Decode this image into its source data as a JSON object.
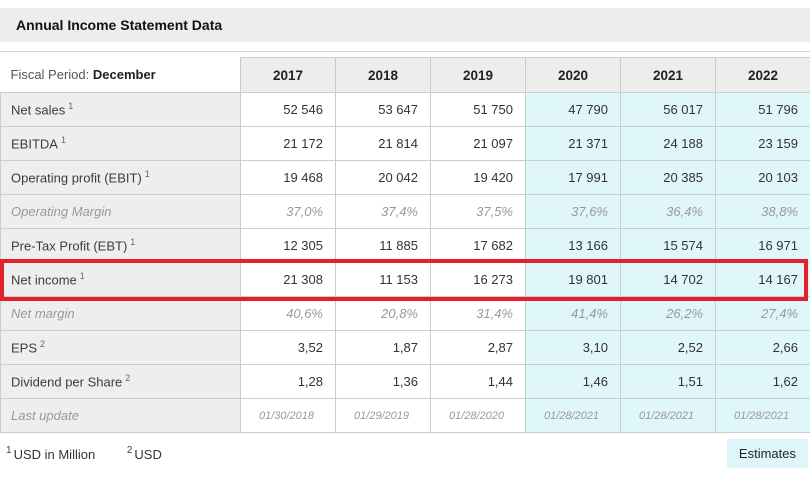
{
  "title": "Annual Income Statement Data",
  "table": {
    "fiscal_period_label": "Fiscal Period:",
    "fiscal_period_value": "December",
    "years": [
      "2017",
      "2018",
      "2019",
      "2020",
      "2021",
      "2022"
    ],
    "estimate_year_start_index": 3,
    "rows": [
      {
        "id": "net-sales",
        "label": "Net sales",
        "sup": "1",
        "variant": "normal",
        "highlighted": false,
        "values": [
          "52 546",
          "53 647",
          "51 750",
          "47 790",
          "56 017",
          "51 796"
        ]
      },
      {
        "id": "ebitda",
        "label": "EBITDA",
        "sup": "1",
        "variant": "normal",
        "highlighted": false,
        "values": [
          "21 172",
          "21 814",
          "21 097",
          "21 371",
          "24 188",
          "23 159"
        ]
      },
      {
        "id": "operating-profit",
        "label": "Operating profit (EBIT)",
        "sup": "1",
        "variant": "normal",
        "highlighted": false,
        "values": [
          "19 468",
          "20 042",
          "19 420",
          "17 991",
          "20 385",
          "20 103"
        ]
      },
      {
        "id": "operating-margin",
        "label": "Operating Margin",
        "sup": "",
        "variant": "muted",
        "highlighted": false,
        "values": [
          "37,0%",
          "37,4%",
          "37,5%",
          "37,6%",
          "36,4%",
          "38,8%"
        ]
      },
      {
        "id": "pretax-profit",
        "label": "Pre-Tax Profit (EBT)",
        "sup": "1",
        "variant": "normal",
        "highlighted": false,
        "values": [
          "12 305",
          "11 885",
          "17 682",
          "13 166",
          "15 574",
          "16 971"
        ]
      },
      {
        "id": "net-income",
        "label": "Net income",
        "sup": "1",
        "variant": "normal",
        "highlighted": true,
        "values": [
          "21 308",
          "11 153",
          "16 273",
          "19 801",
          "14 702",
          "14 167"
        ]
      },
      {
        "id": "net-margin",
        "label": "Net margin",
        "sup": "",
        "variant": "muted",
        "highlighted": false,
        "values": [
          "40,6%",
          "20,8%",
          "31,4%",
          "41,4%",
          "26,2%",
          "27,4%"
        ]
      },
      {
        "id": "eps",
        "label": "EPS",
        "sup": "2",
        "variant": "normal",
        "highlighted": false,
        "values": [
          "3,52",
          "1,87",
          "2,87",
          "3,10",
          "2,52",
          "2,66"
        ]
      },
      {
        "id": "dividend-per-share",
        "label": "Dividend per Share",
        "sup": "2",
        "variant": "normal",
        "highlighted": false,
        "values": [
          "1,28",
          "1,36",
          "1,44",
          "1,46",
          "1,51",
          "1,62"
        ]
      },
      {
        "id": "last-update",
        "label": "Last update",
        "sup": "",
        "variant": "muted-small",
        "highlighted": false,
        "values": [
          "01/30/2018",
          "01/29/2019",
          "01/28/2020",
          "01/28/2021",
          "01/28/2021",
          "01/28/2021"
        ]
      }
    ]
  },
  "footnotes": [
    {
      "sup": "1",
      "text": "USD in Million"
    },
    {
      "sup": "2",
      "text": "USD"
    }
  ],
  "estimates_badge_label": "Estimates",
  "colors": {
    "header_bg": "#ededed",
    "label_bg": "#eeeeee",
    "estimate_bg": "#dff6fa",
    "highlight_red": "#e3202c",
    "border": "#cccccc"
  }
}
